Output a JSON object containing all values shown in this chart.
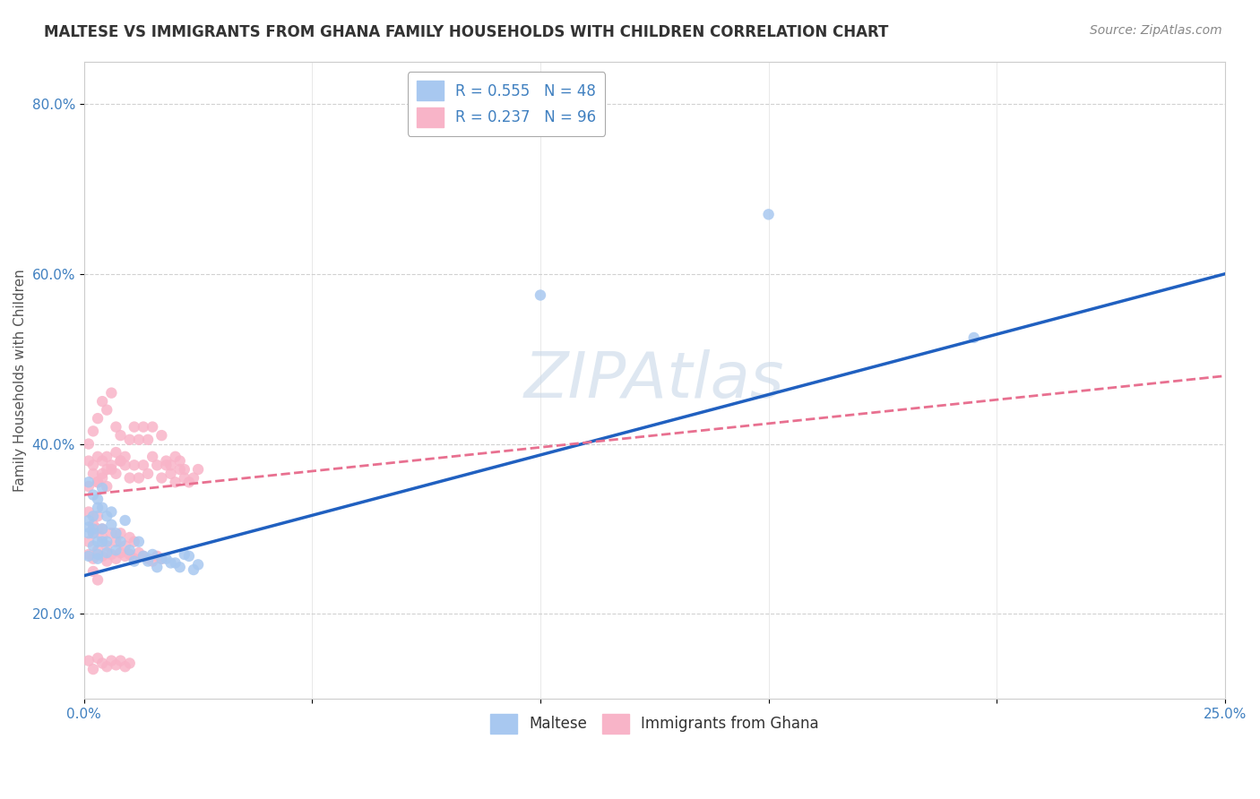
{
  "title": "MALTESE VS IMMIGRANTS FROM GHANA FAMILY HOUSEHOLDS WITH CHILDREN CORRELATION CHART",
  "source": "Source: ZipAtlas.com",
  "ylabel": "Family Households with Children",
  "watermark": "ZIPAtlas",
  "blue_scatter": [
    [
      0.001,
      0.295
    ],
    [
      0.002,
      0.28
    ],
    [
      0.003,
      0.27
    ],
    [
      0.001,
      0.31
    ],
    [
      0.002,
      0.3
    ],
    [
      0.004,
      0.285
    ],
    [
      0.003,
      0.325
    ],
    [
      0.005,
      0.315
    ],
    [
      0.002,
      0.34
    ],
    [
      0.001,
      0.268
    ],
    [
      0.004,
      0.3
    ],
    [
      0.003,
      0.285
    ],
    [
      0.006,
      0.305
    ],
    [
      0.005,
      0.272
    ],
    [
      0.002,
      0.315
    ],
    [
      0.004,
      0.325
    ],
    [
      0.007,
      0.295
    ],
    [
      0.003,
      0.335
    ],
    [
      0.001,
      0.302
    ],
    [
      0.006,
      0.32
    ],
    [
      0.008,
      0.285
    ],
    [
      0.004,
      0.348
    ],
    [
      0.005,
      0.285
    ],
    [
      0.009,
      0.31
    ],
    [
      0.003,
      0.265
    ],
    [
      0.002,
      0.295
    ],
    [
      0.007,
      0.275
    ],
    [
      0.001,
      0.355
    ],
    [
      0.01,
      0.275
    ],
    [
      0.012,
      0.285
    ],
    [
      0.015,
      0.27
    ],
    [
      0.013,
      0.268
    ],
    [
      0.016,
      0.255
    ],
    [
      0.018,
      0.265
    ],
    [
      0.02,
      0.26
    ],
    [
      0.022,
      0.27
    ],
    [
      0.025,
      0.258
    ],
    [
      0.014,
      0.262
    ],
    [
      0.017,
      0.265
    ],
    [
      0.019,
      0.26
    ],
    [
      0.021,
      0.255
    ],
    [
      0.011,
      0.262
    ],
    [
      0.024,
      0.252
    ],
    [
      0.023,
      0.268
    ],
    [
      0.1,
      0.575
    ],
    [
      0.15,
      0.67
    ],
    [
      0.195,
      0.525
    ]
  ],
  "pink_scatter": [
    [
      0.001,
      0.35
    ],
    [
      0.002,
      0.365
    ],
    [
      0.001,
      0.38
    ],
    [
      0.003,
      0.355
    ],
    [
      0.002,
      0.375
    ],
    [
      0.004,
      0.36
    ],
    [
      0.003,
      0.385
    ],
    [
      0.005,
      0.37
    ],
    [
      0.004,
      0.38
    ],
    [
      0.006,
      0.375
    ],
    [
      0.005,
      0.385
    ],
    [
      0.007,
      0.365
    ],
    [
      0.006,
      0.37
    ],
    [
      0.008,
      0.38
    ],
    [
      0.007,
      0.39
    ],
    [
      0.009,
      0.375
    ],
    [
      0.008,
      0.38
    ],
    [
      0.01,
      0.36
    ],
    [
      0.009,
      0.385
    ],
    [
      0.011,
      0.375
    ],
    [
      0.012,
      0.36
    ],
    [
      0.013,
      0.375
    ],
    [
      0.014,
      0.365
    ],
    [
      0.015,
      0.385
    ],
    [
      0.016,
      0.375
    ],
    [
      0.017,
      0.36
    ],
    [
      0.018,
      0.375
    ],
    [
      0.019,
      0.365
    ],
    [
      0.02,
      0.355
    ],
    [
      0.021,
      0.38
    ],
    [
      0.022,
      0.37
    ],
    [
      0.023,
      0.355
    ],
    [
      0.003,
      0.355
    ],
    [
      0.004,
      0.365
    ],
    [
      0.005,
      0.35
    ],
    [
      0.002,
      0.415
    ],
    [
      0.001,
      0.4
    ],
    [
      0.007,
      0.42
    ],
    [
      0.008,
      0.41
    ],
    [
      0.003,
      0.43
    ],
    [
      0.01,
      0.405
    ],
    [
      0.011,
      0.42
    ],
    [
      0.012,
      0.405
    ],
    [
      0.013,
      0.42
    ],
    [
      0.014,
      0.405
    ],
    [
      0.015,
      0.42
    ],
    [
      0.004,
      0.45
    ],
    [
      0.005,
      0.44
    ],
    [
      0.006,
      0.46
    ],
    [
      0.017,
      0.41
    ],
    [
      0.001,
      0.32
    ],
    [
      0.002,
      0.305
    ],
    [
      0.003,
      0.315
    ],
    [
      0.004,
      0.3
    ],
    [
      0.001,
      0.285
    ],
    [
      0.002,
      0.295
    ],
    [
      0.003,
      0.3
    ],
    [
      0.004,
      0.29
    ],
    [
      0.005,
      0.28
    ],
    [
      0.006,
      0.295
    ],
    [
      0.007,
      0.285
    ],
    [
      0.008,
      0.295
    ],
    [
      0.009,
      0.28
    ],
    [
      0.01,
      0.29
    ],
    [
      0.011,
      0.285
    ],
    [
      0.001,
      0.27
    ],
    [
      0.002,
      0.265
    ],
    [
      0.003,
      0.275
    ],
    [
      0.004,
      0.268
    ],
    [
      0.005,
      0.262
    ],
    [
      0.006,
      0.27
    ],
    [
      0.007,
      0.265
    ],
    [
      0.008,
      0.272
    ],
    [
      0.009,
      0.268
    ],
    [
      0.01,
      0.27
    ],
    [
      0.011,
      0.265
    ],
    [
      0.012,
      0.272
    ],
    [
      0.013,
      0.268
    ],
    [
      0.014,
      0.265
    ],
    [
      0.015,
      0.262
    ],
    [
      0.016,
      0.268
    ],
    [
      0.017,
      0.265
    ],
    [
      0.024,
      0.36
    ],
    [
      0.025,
      0.37
    ],
    [
      0.02,
      0.385
    ],
    [
      0.021,
      0.37
    ],
    [
      0.022,
      0.36
    ],
    [
      0.018,
      0.38
    ],
    [
      0.019,
      0.375
    ],
    [
      0.002,
      0.25
    ],
    [
      0.003,
      0.24
    ],
    [
      0.001,
      0.145
    ],
    [
      0.002,
      0.135
    ],
    [
      0.003,
      0.148
    ],
    [
      0.004,
      0.142
    ],
    [
      0.005,
      0.138
    ],
    [
      0.006,
      0.145
    ],
    [
      0.007,
      0.14
    ],
    [
      0.008,
      0.145
    ],
    [
      0.009,
      0.138
    ],
    [
      0.01,
      0.142
    ]
  ],
  "blue_line": {
    "x0": 0.0,
    "y0": 0.245,
    "x1": 0.25,
    "y1": 0.6
  },
  "pink_line": {
    "x0": 0.0,
    "y0": 0.34,
    "x1": 0.25,
    "y1": 0.48
  },
  "xlim": [
    0.0,
    0.25
  ],
  "ylim": [
    0.1,
    0.85
  ],
  "xticks": [
    0.0,
    0.05,
    0.1,
    0.15,
    0.2,
    0.25
  ],
  "xticklabels": [
    "0.0%",
    "",
    "",
    "",
    "",
    "25.0%"
  ],
  "yticks": [
    0.2,
    0.4,
    0.6,
    0.8
  ],
  "yticklabels": [
    "20.0%",
    "40.0%",
    "60.0%",
    "80.0%"
  ],
  "minor_xticks": [
    0.0,
    0.025,
    0.05,
    0.075,
    0.1,
    0.125,
    0.15,
    0.175,
    0.2,
    0.225,
    0.25
  ],
  "blue_color": "#a8c8f0",
  "pink_color": "#f8b4c8",
  "blue_line_color": "#2060c0",
  "pink_line_color": "#e87090",
  "tick_color": "#4080c0",
  "title_fontsize": 12,
  "axis_label_fontsize": 11,
  "tick_fontsize": 11,
  "legend_fontsize": 12,
  "watermark_color": "#c8d8e8",
  "watermark_fontsize": 52
}
